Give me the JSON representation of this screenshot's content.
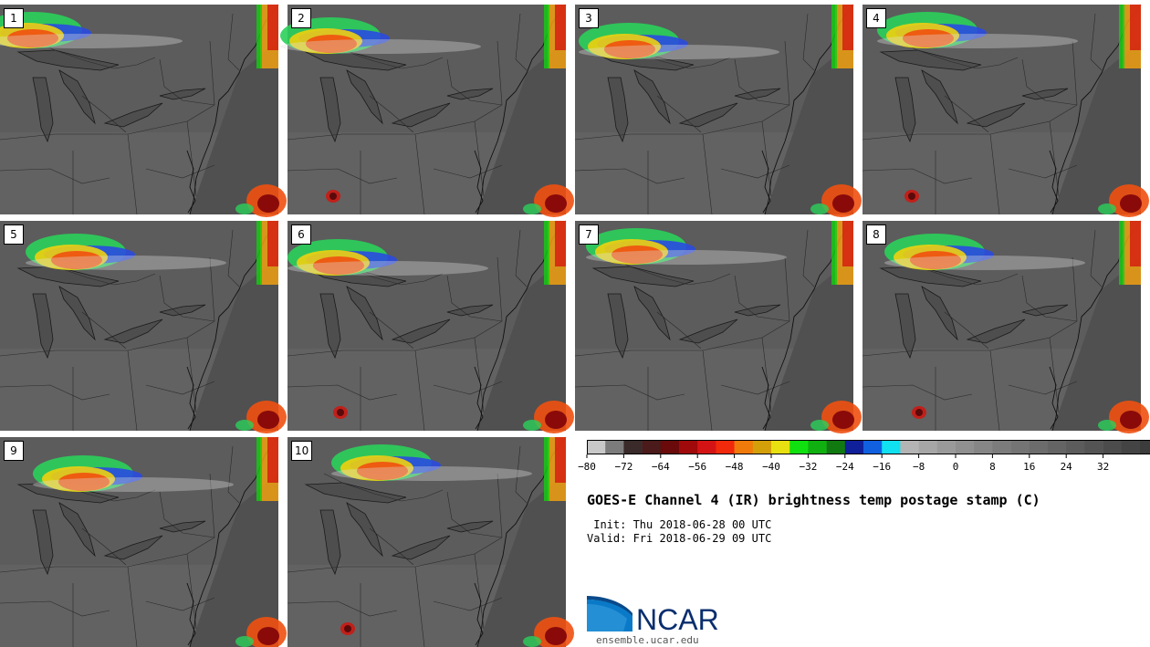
{
  "panels": [
    "1",
    "2",
    "3",
    "4",
    "5",
    "6",
    "7",
    "8",
    "9",
    "10"
  ],
  "colorbar": {
    "ticks": [
      "−80",
      "−72",
      "−64",
      "−56",
      "−48",
      "−40",
      "−32",
      "−24",
      "−16",
      "−8",
      "0",
      "8",
      "16",
      "24",
      "32"
    ],
    "colors": [
      "#c8c8c8",
      "#7c7c7c",
      "#3a2a2a",
      "#4b1a1a",
      "#6a0a0a",
      "#a00a0a",
      "#d41414",
      "#f02a0a",
      "#f07a0a",
      "#d4a00a",
      "#e8e010",
      "#10e010",
      "#10b010",
      "#107a10",
      "#10209a",
      "#1060e0",
      "#10e0f0",
      "#b4b4b4",
      "#a6a6a6",
      "#9a9a9a",
      "#909090",
      "#868686",
      "#7c7c7c",
      "#747474",
      "#6c6c6c",
      "#646464",
      "#5c5c5c",
      "#545454",
      "#4c4c4c",
      "#444444",
      "#3c3c3c",
      "#343434",
      "#2c2c2c"
    ]
  },
  "title": "GOES-E Channel 4 (IR) brightness temp postage stamp (C)",
  "init": " Init: Thu 2018-06-28 00 UTC",
  "valid": "Valid: Fri 2018-06-29 09 UTC",
  "logo_text": "NCAR",
  "url": "ensemble.ucar.edu"
}
